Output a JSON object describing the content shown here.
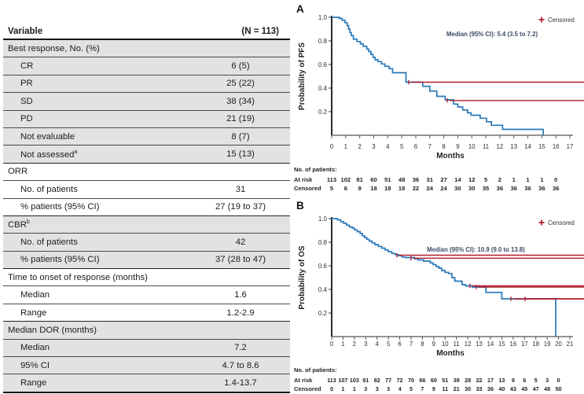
{
  "table": {
    "header": {
      "variable": "Variable",
      "n": "(N = 113)"
    },
    "rows": [
      {
        "label": "Best response, No. (%)",
        "value": "",
        "indent": 0,
        "shaded": true,
        "section_start": true
      },
      {
        "label": "CR",
        "value": "6 (5)",
        "indent": 1,
        "shaded": true
      },
      {
        "label": "PR",
        "value": "25 (22)",
        "indent": 1,
        "shaded": true
      },
      {
        "label": "SD",
        "value": "38 (34)",
        "indent": 1,
        "shaded": true
      },
      {
        "label": "PD",
        "value": "21 (19)",
        "indent": 1,
        "shaded": true
      },
      {
        "label": "Not evaluable",
        "value": "8 (7)",
        "indent": 1,
        "shaded": true
      },
      {
        "label": "Not assessed",
        "sup": "a",
        "value": "15 (13)",
        "indent": 1,
        "shaded": true
      },
      {
        "label": "ORR",
        "value": "",
        "indent": 0,
        "shaded": false,
        "section_start": true
      },
      {
        "label": "No. of patients",
        "value": "31",
        "indent": 1,
        "shaded": false
      },
      {
        "label": "% patients (95% CI)",
        "value": "27 (19 to 37)",
        "indent": 1,
        "shaded": false
      },
      {
        "label": "CBR",
        "sup": "b",
        "value": "",
        "indent": 0,
        "shaded": true,
        "section_start": true
      },
      {
        "label": "No. of patients",
        "value": "42",
        "indent": 1,
        "shaded": true
      },
      {
        "label": "% patients (95% CI)",
        "value": "37 (28 to 47)",
        "indent": 1,
        "shaded": true
      },
      {
        "label": "Time to onset of response (months)",
        "value": "",
        "indent": 0,
        "shaded": false,
        "section_start": true
      },
      {
        "label": "Median",
        "value": "1.6",
        "indent": 1,
        "shaded": false
      },
      {
        "label": "Range",
        "value": "1.2-2.9",
        "indent": 1,
        "shaded": false
      },
      {
        "label": "Median DOR (months)",
        "value": "",
        "indent": 0,
        "shaded": true,
        "section_start": true
      },
      {
        "label": "Median",
        "value": "7.2",
        "indent": 1,
        "shaded": true
      },
      {
        "label": "95% CI",
        "value": "4.7 to 8.6",
        "indent": 1,
        "shaded": true
      },
      {
        "label": "Range",
        "value": "1.4-13.7",
        "indent": 1,
        "shaded": true
      }
    ]
  },
  "chart_data": [
    {
      "type": "line",
      "subtype": "kaplan-meier-step",
      "panel": "A",
      "ylabel": "Probability of PFS",
      "xlabel": "Months",
      "xlim": [
        0,
        17
      ],
      "ylim": [
        0,
        1.0
      ],
      "yticks": [
        0.2,
        0.4,
        0.6,
        0.8,
        1.0
      ],
      "annotation": "Median (95% CI): 5.4 (3.5 to 7.2)",
      "legend": [
        {
          "label": "Censored",
          "marker": "plus"
        }
      ],
      "line_color": "#2878b9",
      "censor_color": "#b01e2e",
      "steps": [
        [
          0,
          1.0
        ],
        [
          0.55,
          0.99
        ],
        [
          0.75,
          0.975
        ],
        [
          0.95,
          0.955
        ],
        [
          1.1,
          0.93
        ],
        [
          1.2,
          0.9
        ],
        [
          1.3,
          0.87
        ],
        [
          1.4,
          0.845
        ],
        [
          1.55,
          0.815
        ],
        [
          1.8,
          0.795
        ],
        [
          2.05,
          0.775
        ],
        [
          2.25,
          0.755
        ],
        [
          2.5,
          0.73
        ],
        [
          2.65,
          0.71
        ],
        [
          2.8,
          0.685
        ],
        [
          2.95,
          0.66
        ],
        [
          3.1,
          0.64
        ],
        [
          3.3,
          0.625
        ],
        [
          3.55,
          0.605
        ],
        [
          3.8,
          0.585
        ],
        [
          4.1,
          0.565
        ],
        [
          4.35,
          0.53
        ],
        [
          5.3,
          0.45
        ],
        [
          6.5,
          0.415
        ],
        [
          7.0,
          0.375
        ],
        [
          7.5,
          0.33
        ],
        [
          8.1,
          0.3
        ],
        [
          8.7,
          0.265
        ],
        [
          9.0,
          0.24
        ],
        [
          9.35,
          0.215
        ],
        [
          9.7,
          0.19
        ],
        [
          9.95,
          0.17
        ],
        [
          10.6,
          0.145
        ],
        [
          11.05,
          0.115
        ],
        [
          11.4,
          0.085
        ],
        [
          12.2,
          0.05
        ],
        [
          15.1,
          0.0
        ]
      ],
      "censor_marks": [
        [
          0.6,
          0.99
        ],
        [
          0.95,
          0.96
        ],
        [
          1.35,
          0.86
        ],
        [
          2.0,
          0.78
        ],
        [
          2.2,
          0.76
        ],
        [
          2.55,
          0.73
        ],
        [
          2.7,
          0.71
        ],
        [
          2.85,
          0.69
        ],
        [
          3.0,
          0.66
        ],
        [
          5.35,
          0.455
        ],
        [
          5.5,
          0.45
        ],
        [
          5.65,
          0.45
        ],
        [
          6.8,
          0.415
        ],
        [
          6.95,
          0.41
        ],
        [
          8.25,
          0.295
        ],
        [
          8.4,
          0.29
        ],
        [
          8.55,
          0.285
        ],
        [
          9.95,
          0.17
        ],
        [
          10.15,
          0.17
        ],
        [
          10.4,
          0.17
        ],
        [
          10.9,
          0.145
        ],
        [
          11.1,
          0.115
        ]
      ],
      "at_risk_header": "No. of patients:",
      "at_risk_label": "At risk",
      "censored_label": "Censored",
      "at_risk": [
        113,
        102,
        81,
        60,
        51,
        48,
        36,
        31,
        27,
        14,
        12,
        5,
        2,
        1,
        1,
        1,
        0
      ],
      "censored": [
        5,
        6,
        9,
        18,
        18,
        18,
        22,
        24,
        24,
        30,
        30,
        35,
        36,
        36,
        36,
        36,
        36
      ]
    },
    {
      "type": "line",
      "subtype": "kaplan-meier-step",
      "panel": "B",
      "ylabel": "Probability of OS",
      "xlabel": "Months",
      "xlim": [
        0,
        21
      ],
      "ylim": [
        0,
        1.0
      ],
      "yticks": [
        0.2,
        0.4,
        0.6,
        0.8,
        1.0
      ],
      "annotation": "Median (95% CI): 10.9 (9.0 to 13.8)",
      "legend": [
        {
          "label": "Censored",
          "marker": "plus"
        }
      ],
      "line_color": "#2878b9",
      "censor_color": "#b01e2e",
      "steps": [
        [
          0,
          1.0
        ],
        [
          0.5,
          0.99
        ],
        [
          0.8,
          0.975
        ],
        [
          1.05,
          0.96
        ],
        [
          1.3,
          0.945
        ],
        [
          1.55,
          0.93
        ],
        [
          1.8,
          0.92
        ],
        [
          2.0,
          0.905
        ],
        [
          2.25,
          0.89
        ],
        [
          2.5,
          0.875
        ],
        [
          2.7,
          0.855
        ],
        [
          2.9,
          0.84
        ],
        [
          3.1,
          0.825
        ],
        [
          3.3,
          0.81
        ],
        [
          3.55,
          0.795
        ],
        [
          3.8,
          0.78
        ],
        [
          4.1,
          0.765
        ],
        [
          4.4,
          0.75
        ],
        [
          4.7,
          0.735
        ],
        [
          5.0,
          0.72
        ],
        [
          5.3,
          0.705
        ],
        [
          5.6,
          0.695
        ],
        [
          5.9,
          0.685
        ],
        [
          6.2,
          0.675
        ],
        [
          6.5,
          0.67
        ],
        [
          7.3,
          0.66
        ],
        [
          7.6,
          0.65
        ],
        [
          8.1,
          0.64
        ],
        [
          8.7,
          0.625
        ],
        [
          8.95,
          0.61
        ],
        [
          9.2,
          0.595
        ],
        [
          9.45,
          0.58
        ],
        [
          9.7,
          0.56
        ],
        [
          10.0,
          0.545
        ],
        [
          10.3,
          0.535
        ],
        [
          10.6,
          0.5
        ],
        [
          10.85,
          0.47
        ],
        [
          11.5,
          0.44
        ],
        [
          11.8,
          0.43
        ],
        [
          12.4,
          0.42
        ],
        [
          13.6,
          0.375
        ],
        [
          15.0,
          0.32
        ],
        [
          19.75,
          0.0
        ]
      ],
      "censor_marks": [
        [
          0.6,
          0.99
        ],
        [
          1.9,
          0.91
        ],
        [
          2.2,
          0.89
        ],
        [
          2.75,
          0.855
        ],
        [
          5.75,
          0.69
        ],
        [
          6.4,
          0.675
        ],
        [
          6.65,
          0.67
        ],
        [
          7.0,
          0.665
        ],
        [
          7.75,
          0.645
        ],
        [
          8.0,
          0.64
        ],
        [
          8.3,
          0.64
        ],
        [
          9.1,
          0.6
        ],
        [
          9.6,
          0.565
        ],
        [
          9.85,
          0.555
        ],
        [
          10.1,
          0.54
        ],
        [
          10.4,
          0.535
        ],
        [
          11.0,
          0.465
        ],
        [
          11.2,
          0.46
        ],
        [
          11.45,
          0.44
        ],
        [
          11.95,
          0.43
        ],
        [
          12.2,
          0.43
        ],
        [
          12.75,
          0.42
        ],
        [
          13.0,
          0.42
        ],
        [
          14.2,
          0.375
        ],
        [
          14.5,
          0.375
        ],
        [
          15.55,
          0.32
        ],
        [
          15.8,
          0.32
        ],
        [
          16.05,
          0.32
        ],
        [
          16.8,
          0.32
        ],
        [
          17.05,
          0.32
        ],
        [
          18.0,
          0.32
        ],
        [
          18.95,
          0.32
        ],
        [
          19.25,
          0.32
        ],
        [
          19.5,
          0.32
        ]
      ],
      "at_risk_header": "No. of patients:",
      "at_risk_label": "At risk",
      "censored_label": "Censored",
      "at_risk": [
        113,
        107,
        103,
        91,
        82,
        77,
        72,
        70,
        66,
        60,
        51,
        39,
        28,
        22,
        17,
        13,
        9,
        6,
        5,
        3,
        0
      ],
      "censored": [
        0,
        1,
        1,
        3,
        3,
        3,
        4,
        5,
        7,
        9,
        11,
        21,
        30,
        33,
        36,
        40,
        43,
        45,
        47,
        48,
        50
      ]
    }
  ]
}
